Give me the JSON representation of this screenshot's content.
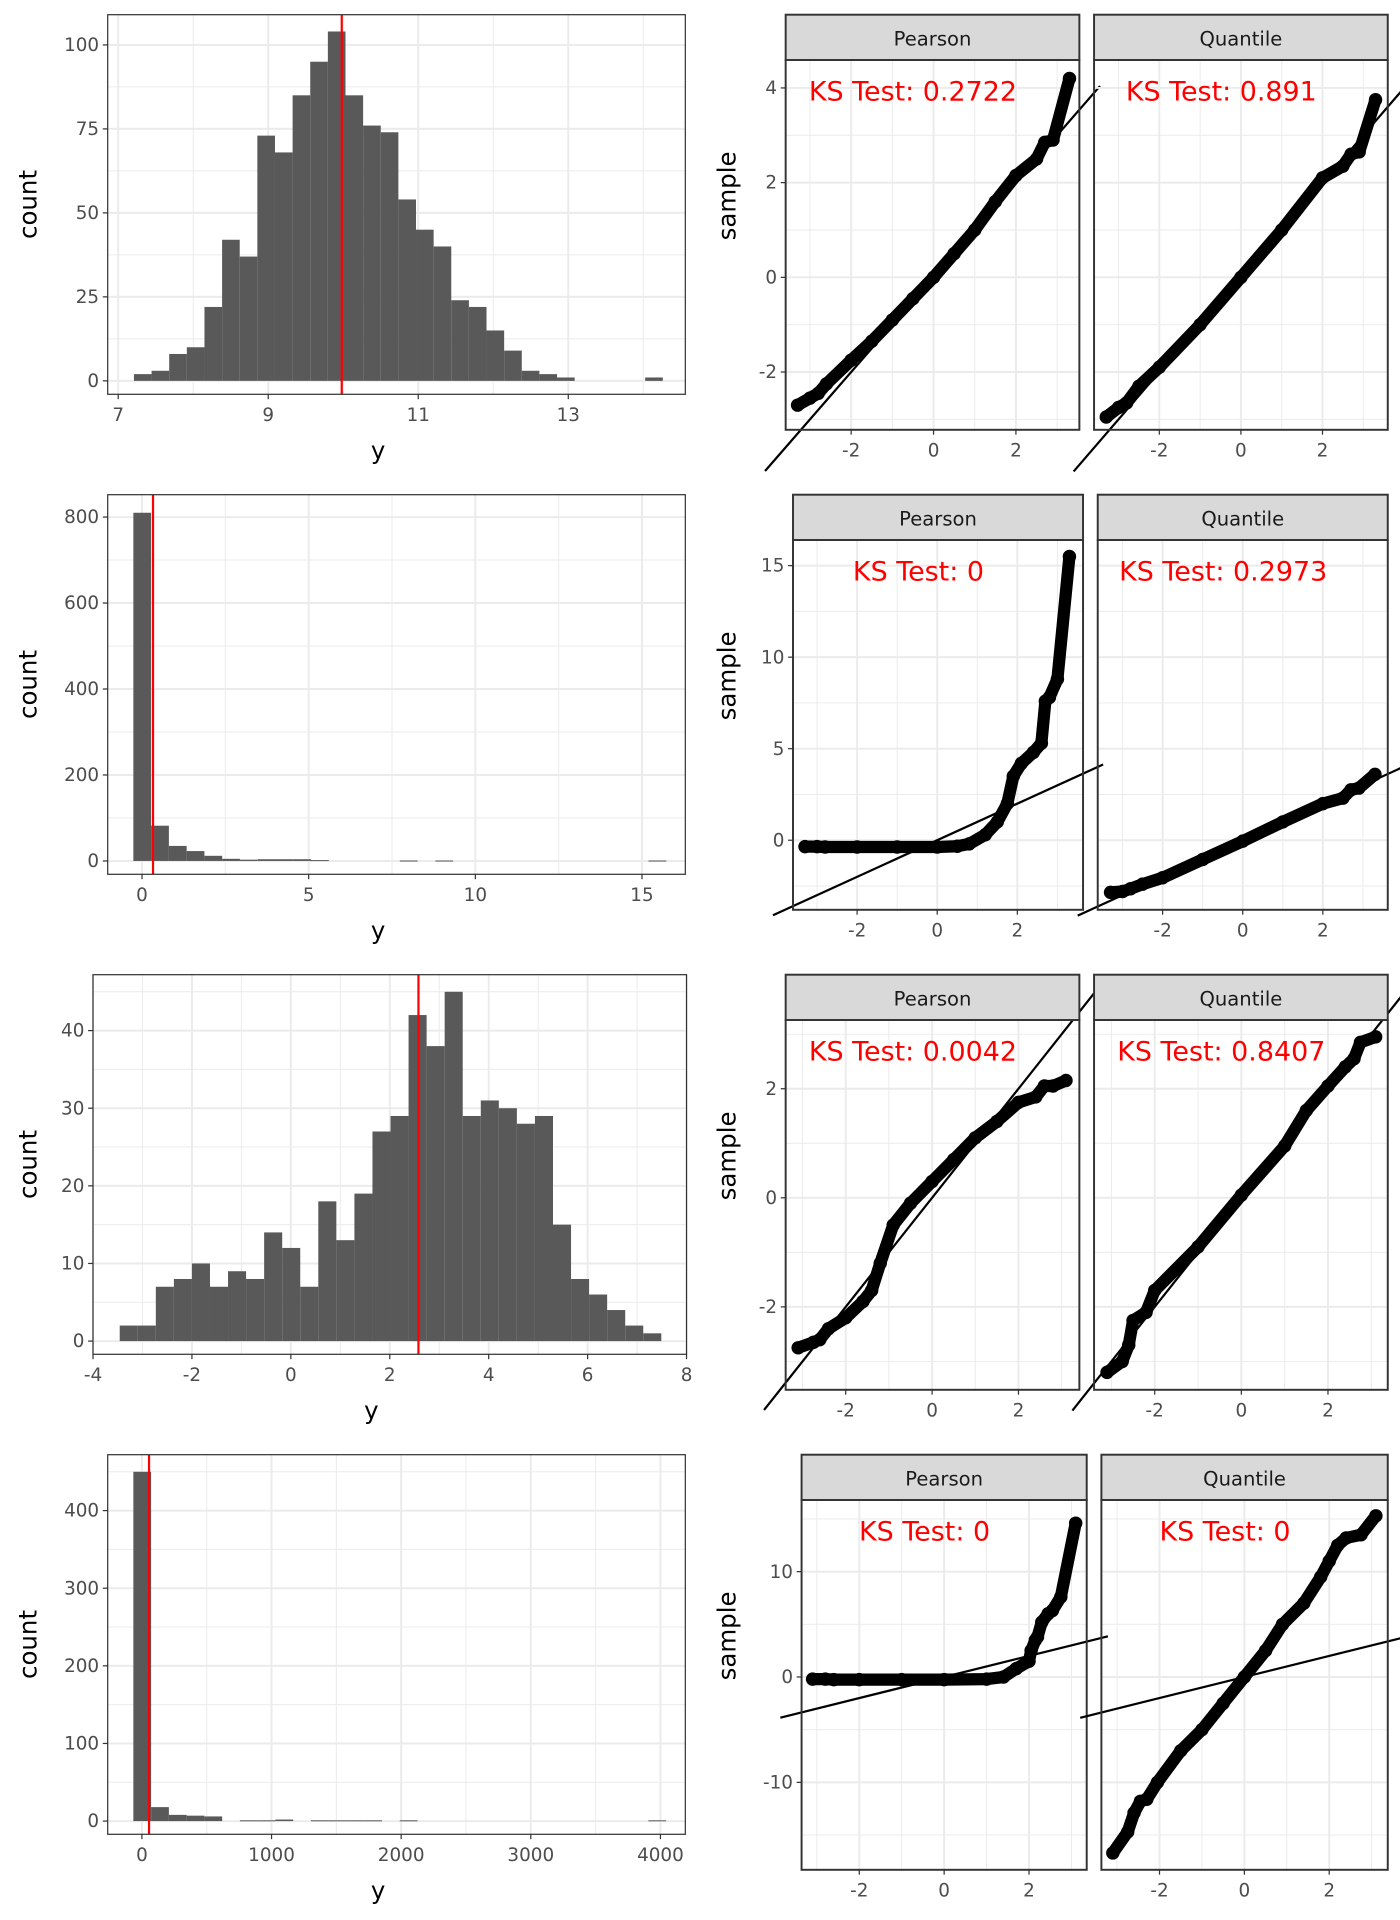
{
  "colors": {
    "bar": "#595959",
    "mean_line": "#ff0000",
    "grid": "#ebebeb",
    "border": "#333333",
    "strip": "#d9d9d9",
    "point": "#000000",
    "ks_text": "#ff0000"
  },
  "chart_data": [
    {
      "type": "bar",
      "subtype": "histogram",
      "xlabel": "y",
      "ylabel": "count",
      "bin_start": 7.21,
      "bin_width": 0.235,
      "counts": [
        2,
        3,
        8,
        10,
        22,
        42,
        37,
        73,
        68,
        85,
        95,
        104,
        85,
        76,
        74,
        54,
        45,
        40,
        24,
        22,
        15,
        9,
        3,
        2,
        1,
        0,
        0,
        0,
        0,
        1
      ],
      "mean_line": 9.98,
      "xlim": [
        6.86,
        14.56
      ],
      "ylim": [
        -4,
        109
      ],
      "xticks": [
        7,
        9,
        11,
        13
      ],
      "yticks": [
        0,
        25,
        50,
        75,
        100
      ],
      "grid": true
    },
    {
      "type": "scatter",
      "subtype": "qq",
      "facets": [
        {
          "strip": "Pearson",
          "annotation": "KS Test: 0.2722",
          "xlabel": "",
          "ylabel": "sample",
          "xlim": [
            -3.59,
            3.54
          ],
          "ylim": [
            -3.22,
            4.59
          ],
          "xticks": [
            -2,
            0,
            2
          ],
          "yticks": [
            -2,
            0,
            2,
            4
          ],
          "ref_line": {
            "intercept": 0,
            "slope": 1
          },
          "points": [
            [
              -3.3,
              -2.7
            ],
            [
              -3.0,
              -2.55
            ],
            [
              -2.8,
              -2.45
            ],
            [
              -2.6,
              -2.25
            ],
            [
              -2.0,
              -1.75
            ],
            [
              -1.5,
              -1.35
            ],
            [
              -1,
              -0.9
            ],
            [
              -0.5,
              -0.45
            ],
            [
              0,
              0
            ],
            [
              0.5,
              0.5
            ],
            [
              1,
              1.0
            ],
            [
              1.5,
              1.6
            ],
            [
              2,
              2.15
            ],
            [
              2.5,
              2.5
            ],
            [
              2.7,
              2.85
            ],
            [
              2.9,
              2.9
            ],
            [
              3.3,
              4.2
            ]
          ]
        },
        {
          "strip": "Quantile",
          "annotation": "KS Test: 0.891",
          "xlim": [
            -3.6,
            3.6
          ],
          "ylim": [
            -3.22,
            4.59
          ],
          "xticks": [
            -2,
            0,
            2
          ],
          "yticks": [
            -2,
            0,
            2,
            4
          ],
          "ref_line": {
            "intercept": 0,
            "slope": 1
          },
          "points": [
            [
              -3.3,
              -2.95
            ],
            [
              -3.0,
              -2.75
            ],
            [
              -2.8,
              -2.65
            ],
            [
              -2.5,
              -2.3
            ],
            [
              -2,
              -1.9
            ],
            [
              -1,
              -1
            ],
            [
              0,
              0
            ],
            [
              1,
              1.0
            ],
            [
              2,
              2.1
            ],
            [
              2.5,
              2.35
            ],
            [
              2.7,
              2.6
            ],
            [
              2.9,
              2.65
            ],
            [
              3.3,
              3.75
            ]
          ]
        }
      ]
    },
    {
      "type": "bar",
      "subtype": "histogram",
      "xlabel": "y",
      "ylabel": "count",
      "bin_start": -0.26,
      "bin_width": 0.533,
      "counts": [
        810,
        82,
        35,
        23,
        12,
        5,
        3,
        4,
        4,
        4,
        2,
        0,
        0,
        0,
        0,
        1,
        0,
        1,
        0,
        0,
        0,
        0,
        0,
        0,
        0,
        0,
        0,
        0,
        0,
        1
      ],
      "mean_line": 0.33,
      "xlim": [
        -1.03,
        16.3
      ],
      "ylim": [
        -31,
        852
      ],
      "xticks": [
        0,
        5,
        10,
        15
      ],
      "yticks": [
        0,
        200,
        400,
        600,
        800
      ],
      "grid": true
    },
    {
      "type": "scatter",
      "subtype": "qq",
      "facets": [
        {
          "strip": "Pearson",
          "annotation": "KS Test: 0",
          "ylabel": "sample",
          "xlim": [
            -3.6,
            3.64
          ],
          "ylim": [
            -3.8,
            16.4
          ],
          "xticks": [
            -2,
            0,
            2
          ],
          "yticks": [
            0,
            5,
            10,
            15
          ],
          "ref_line": {
            "intercept": 0,
            "slope": 1
          },
          "points": [
            [
              -3.3,
              -0.35
            ],
            [
              -3.0,
              -0.35
            ],
            [
              -2.8,
              -0.37
            ],
            [
              -2,
              -0.37
            ],
            [
              -1,
              -0.37
            ],
            [
              0,
              -0.37
            ],
            [
              0.5,
              -0.33
            ],
            [
              0.8,
              -0.2
            ],
            [
              1.2,
              0.3
            ],
            [
              1.5,
              1.0
            ],
            [
              1.75,
              2.0
            ],
            [
              1.9,
              3.5
            ],
            [
              2.1,
              4.2
            ],
            [
              2.4,
              4.8
            ],
            [
              2.6,
              5.3
            ],
            [
              2.7,
              7.6
            ],
            [
              2.8,
              7.8
            ],
            [
              3.0,
              8.8
            ],
            [
              3.3,
              15.5
            ]
          ]
        },
        {
          "strip": "Quantile",
          "annotation": "KS Test: 0.2973",
          "xlim": [
            -3.62,
            3.62
          ],
          "ylim": [
            -3.8,
            16.4
          ],
          "xticks": [
            -2,
            0,
            2
          ],
          "yticks": [
            0,
            5,
            10,
            15
          ],
          "ref_line": {
            "intercept": 0,
            "slope": 1
          },
          "points": [
            [
              -3.3,
              -2.85
            ],
            [
              -3.0,
              -2.8
            ],
            [
              -2.8,
              -2.65
            ],
            [
              -2.5,
              -2.4
            ],
            [
              -2,
              -2.05
            ],
            [
              -1,
              -1.05
            ],
            [
              0,
              -0.05
            ],
            [
              1,
              1.0
            ],
            [
              2,
              2.0
            ],
            [
              2.5,
              2.3
            ],
            [
              2.7,
              2.75
            ],
            [
              2.9,
              2.85
            ],
            [
              3.3,
              3.6
            ]
          ]
        }
      ]
    },
    {
      "type": "bar",
      "subtype": "histogram",
      "xlabel": "y",
      "ylabel": "count",
      "bin_start": -3.46,
      "bin_width": 0.365,
      "counts": [
        2,
        2,
        7,
        8,
        10,
        7,
        9,
        8,
        14,
        12,
        7,
        18,
        13,
        19,
        27,
        29,
        42,
        38,
        45,
        29,
        31,
        30,
        28,
        29,
        15,
        8,
        6,
        4,
        2,
        1
      ],
      "mean_line": 2.58,
      "xlim": [
        -4,
        8
      ],
      "ylim": [
        -1.7,
        47.2
      ],
      "xticks": [
        -4,
        -2,
        0,
        2,
        4,
        6,
        8
      ],
      "yticks": [
        0,
        10,
        20,
        30,
        40
      ],
      "grid": true
    },
    {
      "type": "scatter",
      "subtype": "qq",
      "facets": [
        {
          "strip": "Pearson",
          "annotation": "KS Test: 0.0042",
          "ylabel": "sample",
          "xlim": [
            -3.39,
            3.41
          ],
          "ylim": [
            -3.52,
            3.26
          ],
          "xticks": [
            -2,
            0,
            2
          ],
          "yticks": [
            -2,
            0,
            2
          ],
          "ref_line": {
            "intercept": 0,
            "slope": 1
          },
          "points": [
            [
              -3.1,
              -2.75
            ],
            [
              -2.75,
              -2.65
            ],
            [
              -2.6,
              -2.6
            ],
            [
              -2.4,
              -2.4
            ],
            [
              -2.0,
              -2.2
            ],
            [
              -1.6,
              -1.9
            ],
            [
              -1.4,
              -1.7
            ],
            [
              -1.2,
              -1.2
            ],
            [
              -0.9,
              -0.5
            ],
            [
              -0.5,
              -0.1
            ],
            [
              0,
              0.3
            ],
            [
              0.5,
              0.7
            ],
            [
              1,
              1.1
            ],
            [
              1.5,
              1.4
            ],
            [
              2,
              1.75
            ],
            [
              2.4,
              1.85
            ],
            [
              2.6,
              2.05
            ],
            [
              2.8,
              2.05
            ],
            [
              3.1,
              2.15
            ]
          ]
        },
        {
          "strip": "Quantile",
          "annotation": "KS Test: 0.8407",
          "xlim": [
            -3.4,
            3.38
          ],
          "ylim": [
            -3.52,
            3.26
          ],
          "xticks": [
            -2,
            0,
            2
          ],
          "yticks": [
            -2,
            0,
            2
          ],
          "ref_line": {
            "intercept": 0,
            "slope": 1
          },
          "points": [
            [
              -3.1,
              -3.2
            ],
            [
              -2.75,
              -3.0
            ],
            [
              -2.6,
              -2.7
            ],
            [
              -2.5,
              -2.25
            ],
            [
              -2.2,
              -2.1
            ],
            [
              -2,
              -1.7
            ],
            [
              -1,
              -0.9
            ],
            [
              0,
              0.05
            ],
            [
              1,
              0.95
            ],
            [
              1.5,
              1.6
            ],
            [
              2,
              2.05
            ],
            [
              2.4,
              2.4
            ],
            [
              2.6,
              2.55
            ],
            [
              2.75,
              2.85
            ],
            [
              3.1,
              2.95
            ]
          ]
        }
      ]
    },
    {
      "type": "bar",
      "subtype": "histogram",
      "xlabel": "y",
      "ylabel": "count",
      "bin_start": -66,
      "bin_width": 137,
      "counts": [
        450,
        18,
        8,
        7,
        6,
        0,
        1,
        1,
        2,
        0,
        1,
        1,
        1,
        1,
        0,
        1,
        0,
        0,
        0,
        0,
        0,
        0,
        0,
        0,
        0,
        0,
        0,
        0,
        0,
        1
      ],
      "mean_line": 55,
      "xlim": [
        -264,
        4192
      ],
      "ylim": [
        -17,
        472
      ],
      "xticks": [
        0,
        1000,
        2000,
        3000,
        4000
      ],
      "yticks": [
        0,
        100,
        200,
        300,
        400
      ],
      "grid": true
    },
    {
      "type": "scatter",
      "subtype": "qq",
      "facets": [
        {
          "strip": "Pearson",
          "annotation": "KS Test: 0",
          "ylabel": "sample",
          "xlim": [
            -3.36,
            3.36
          ],
          "ylim": [
            -18.3,
            16.8
          ],
          "xticks": [
            -2,
            0,
            2
          ],
          "yticks": [
            -10,
            0,
            10
          ],
          "ref_line": {
            "intercept": 0,
            "slope": 1
          },
          "points": [
            [
              -3.1,
              -0.2
            ],
            [
              -2.8,
              -0.2
            ],
            [
              -2.6,
              -0.25
            ],
            [
              -2,
              -0.25
            ],
            [
              -1,
              -0.25
            ],
            [
              0,
              -0.25
            ],
            [
              1,
              -0.2
            ],
            [
              1.4,
              0.0
            ],
            [
              1.7,
              0.8
            ],
            [
              2,
              1.5
            ],
            [
              2.05,
              2.5
            ],
            [
              2.15,
              3.5
            ],
            [
              2.2,
              3.8
            ],
            [
              2.3,
              5.2
            ],
            [
              2.45,
              6.0
            ],
            [
              2.55,
              6.3
            ],
            [
              2.75,
              7.6
            ],
            [
              3.1,
              14.6
            ]
          ]
        },
        {
          "strip": "Quantile",
          "annotation": "KS Test: 0",
          "xlim": [
            -3.37,
            3.38
          ],
          "ylim": [
            -18.3,
            16.8
          ],
          "xticks": [
            -2,
            0,
            2
          ],
          "yticks": [
            -10,
            0,
            10
          ],
          "ref_line": {
            "intercept": 0,
            "slope": 1
          },
          "points": [
            [
              -3.1,
              -16.7
            ],
            [
              -2.75,
              -14.7
            ],
            [
              -2.6,
              -12.9
            ],
            [
              -2.45,
              -11.8
            ],
            [
              -2.3,
              -11.6
            ],
            [
              -2.05,
              -10.0
            ],
            [
              -1.5,
              -7.0
            ],
            [
              -1,
              -5
            ],
            [
              -0.5,
              -2.5
            ],
            [
              0,
              0
            ],
            [
              0.5,
              2.5
            ],
            [
              0.9,
              5.0
            ],
            [
              1.4,
              7.0
            ],
            [
              1.8,
              9.5
            ],
            [
              2.0,
              11.0
            ],
            [
              2.2,
              12.5
            ],
            [
              2.4,
              13.2
            ],
            [
              2.75,
              13.5
            ],
            [
              3.1,
              15.3
            ]
          ]
        }
      ]
    }
  ]
}
